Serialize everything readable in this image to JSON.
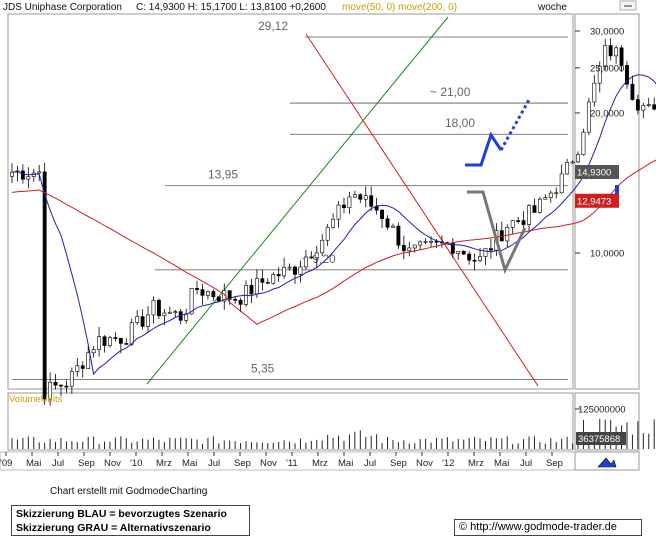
{
  "header": {
    "instrument": "JDS Uniphase Corporation",
    "quote": "C: 14,9300  H: 15,1700  L: 13,8100  +0,2600",
    "ma_label": "move(50, 0)  move(200, 0)",
    "period": "woche"
  },
  "colors": {
    "ma50": "#1c24a8",
    "ma200": "#cc1f1f",
    "uptrend": "#1e8a1e",
    "downtrend": "#d41e1e",
    "scenario_blue": "#1f3fd8",
    "scenario_gray": "#777777"
  },
  "chart_data": {
    "type": "candlestick",
    "y_scale": "log",
    "ylim": [
      4.8,
      33
    ],
    "x_ticks": [
      "'09",
      "Mai",
      "Jul",
      "Sep",
      "Nov",
      "'10",
      "Mrz",
      "Mai",
      "Jul",
      "Sep",
      "Nov",
      "'11",
      "Mrz",
      "Mai",
      "Jul",
      "Sep",
      "Nov",
      "'12",
      "Mrz",
      "Mai",
      "Jul",
      "Sep"
    ],
    "y_ticks": [
      "30,0000",
      "25,0000",
      "20,0000",
      "10,0000"
    ],
    "last_price_label": "14,9300",
    "ma200_label": "12,9473",
    "levels": [
      {
        "label": "29,12",
        "value": 29.12
      },
      {
        "label": "~ 21,00",
        "value": 21.0
      },
      {
        "label": "18,00",
        "value": 18.0
      },
      {
        "label": "13,95",
        "value": 13.95
      },
      {
        "label": "~ 9,20",
        "value": 9.2
      },
      {
        "label": "5,35",
        "value": 5.35
      }
    ],
    "anchors": [
      [
        2009.1,
        5.0
      ],
      [
        2009.2,
        5.3
      ],
      [
        2009.3,
        6.5
      ],
      [
        2009.4,
        6.6
      ],
      [
        2009.5,
        7.6
      ],
      [
        2009.6,
        7.3
      ],
      [
        2009.65,
        8.4
      ],
      [
        2009.7,
        8.2
      ],
      [
        2009.8,
        8.0
      ],
      [
        2009.9,
        8.8
      ],
      [
        2010.0,
        9.3
      ],
      [
        2010.1,
        10.8
      ],
      [
        2010.2,
        13.5
      ],
      [
        2010.3,
        12.3
      ],
      [
        2010.4,
        10.0
      ],
      [
        2010.55,
        10.5
      ],
      [
        2010.65,
        9.6
      ],
      [
        2010.75,
        11.5
      ],
      [
        2010.85,
        12.3
      ],
      [
        2010.95,
        14.6
      ],
      [
        2011.0,
        17.0
      ],
      [
        2011.05,
        22.0
      ],
      [
        2011.1,
        27.5
      ],
      [
        2011.15,
        26.5
      ],
      [
        2011.2,
        21.5
      ],
      [
        2011.28,
        19.5
      ],
      [
        2011.35,
        21.0
      ],
      [
        2011.4,
        19.5
      ],
      [
        2011.45,
        17.0
      ],
      [
        2011.52,
        16.0
      ],
      [
        2011.6,
        13.0
      ],
      [
        2011.65,
        10.5
      ],
      [
        2011.7,
        12.5
      ],
      [
        2011.75,
        10.5
      ],
      [
        2011.8,
        12.3
      ],
      [
        2011.85,
        10.5
      ],
      [
        2011.9,
        11.0
      ],
      [
        2011.95,
        9.6
      ],
      [
        2012.0,
        10.5
      ],
      [
        2012.05,
        12.0
      ],
      [
        2012.12,
        14.93
      ]
    ],
    "volume_label": "VolumeUnits",
    "volume_ticks": [
      "125000000"
    ],
    "volume_last_label": "36375868",
    "series": [
      {
        "name": "move(50, 0)"
      },
      {
        "name": "move(200, 0)"
      }
    ]
  },
  "notes": {
    "credit": "Chart erstellt mit GodmodeCharting",
    "legend_blue": "Skizzierung BLAU = bevorzugtes Szenario",
    "legend_gray": "Skizzierung GRAU = Alternativszenario",
    "copyright": "©",
    "url": "http://www.godmode-trader.de"
  }
}
